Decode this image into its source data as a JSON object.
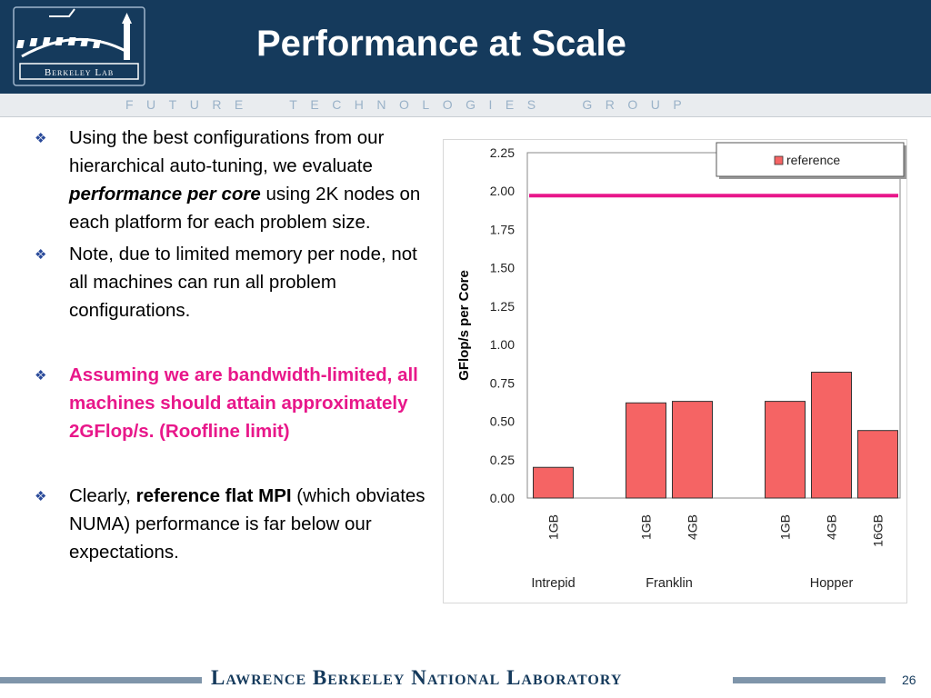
{
  "slide": {
    "title": "Performance at Scale",
    "tagline": "FUTURE  TECHNOLOGIES  GROUP",
    "logo_text": "Berkeley Lab",
    "footer": "Lawrence Berkeley National Laboratory",
    "page_number": "26"
  },
  "bullets": {
    "b1": {
      "t1": "Using the best configurations from our hierarchical auto-tuning, we evaluate ",
      "em": "performance per core",
      "t2": " using 2K nodes on each platform for each problem size."
    },
    "b2": {
      "text": "Note, due to limited memory per node, not all machines can run all problem configurations."
    },
    "b3": {
      "text": "Assuming we are bandwidth-limited, all machines should attain approximately 2GFlop/s. (Roofline limit)"
    },
    "b4": {
      "t1": "Clearly, ",
      "strong": "reference flat MPI",
      "t2": " (which obviates NUMA) performance is far below our expectations."
    }
  },
  "chart_data": {
    "type": "bar",
    "ylabel": "GFlop/s per Core",
    "ylim": [
      0,
      2.25
    ],
    "yticks": [
      "0.00",
      "0.25",
      "0.50",
      "0.75",
      "1.00",
      "1.25",
      "1.50",
      "1.75",
      "2.00",
      "2.25"
    ],
    "groups": [
      {
        "name": "Intrepid",
        "categories": [
          "1GB"
        ],
        "values": [
          0.2
        ]
      },
      {
        "name": "Franklin",
        "categories": [
          "1GB",
          "4GB"
        ],
        "values": [
          0.62,
          0.63
        ]
      },
      {
        "name": "Hopper",
        "categories": [
          "1GB",
          "4GB",
          "16GB"
        ],
        "values": [
          0.63,
          0.82,
          0.44
        ]
      }
    ],
    "series": [
      {
        "name": "reference",
        "color": "#f56464"
      }
    ],
    "roofline": {
      "value": 1.97,
      "color": "#e8178a"
    },
    "legend": "top-right",
    "grid": false
  }
}
